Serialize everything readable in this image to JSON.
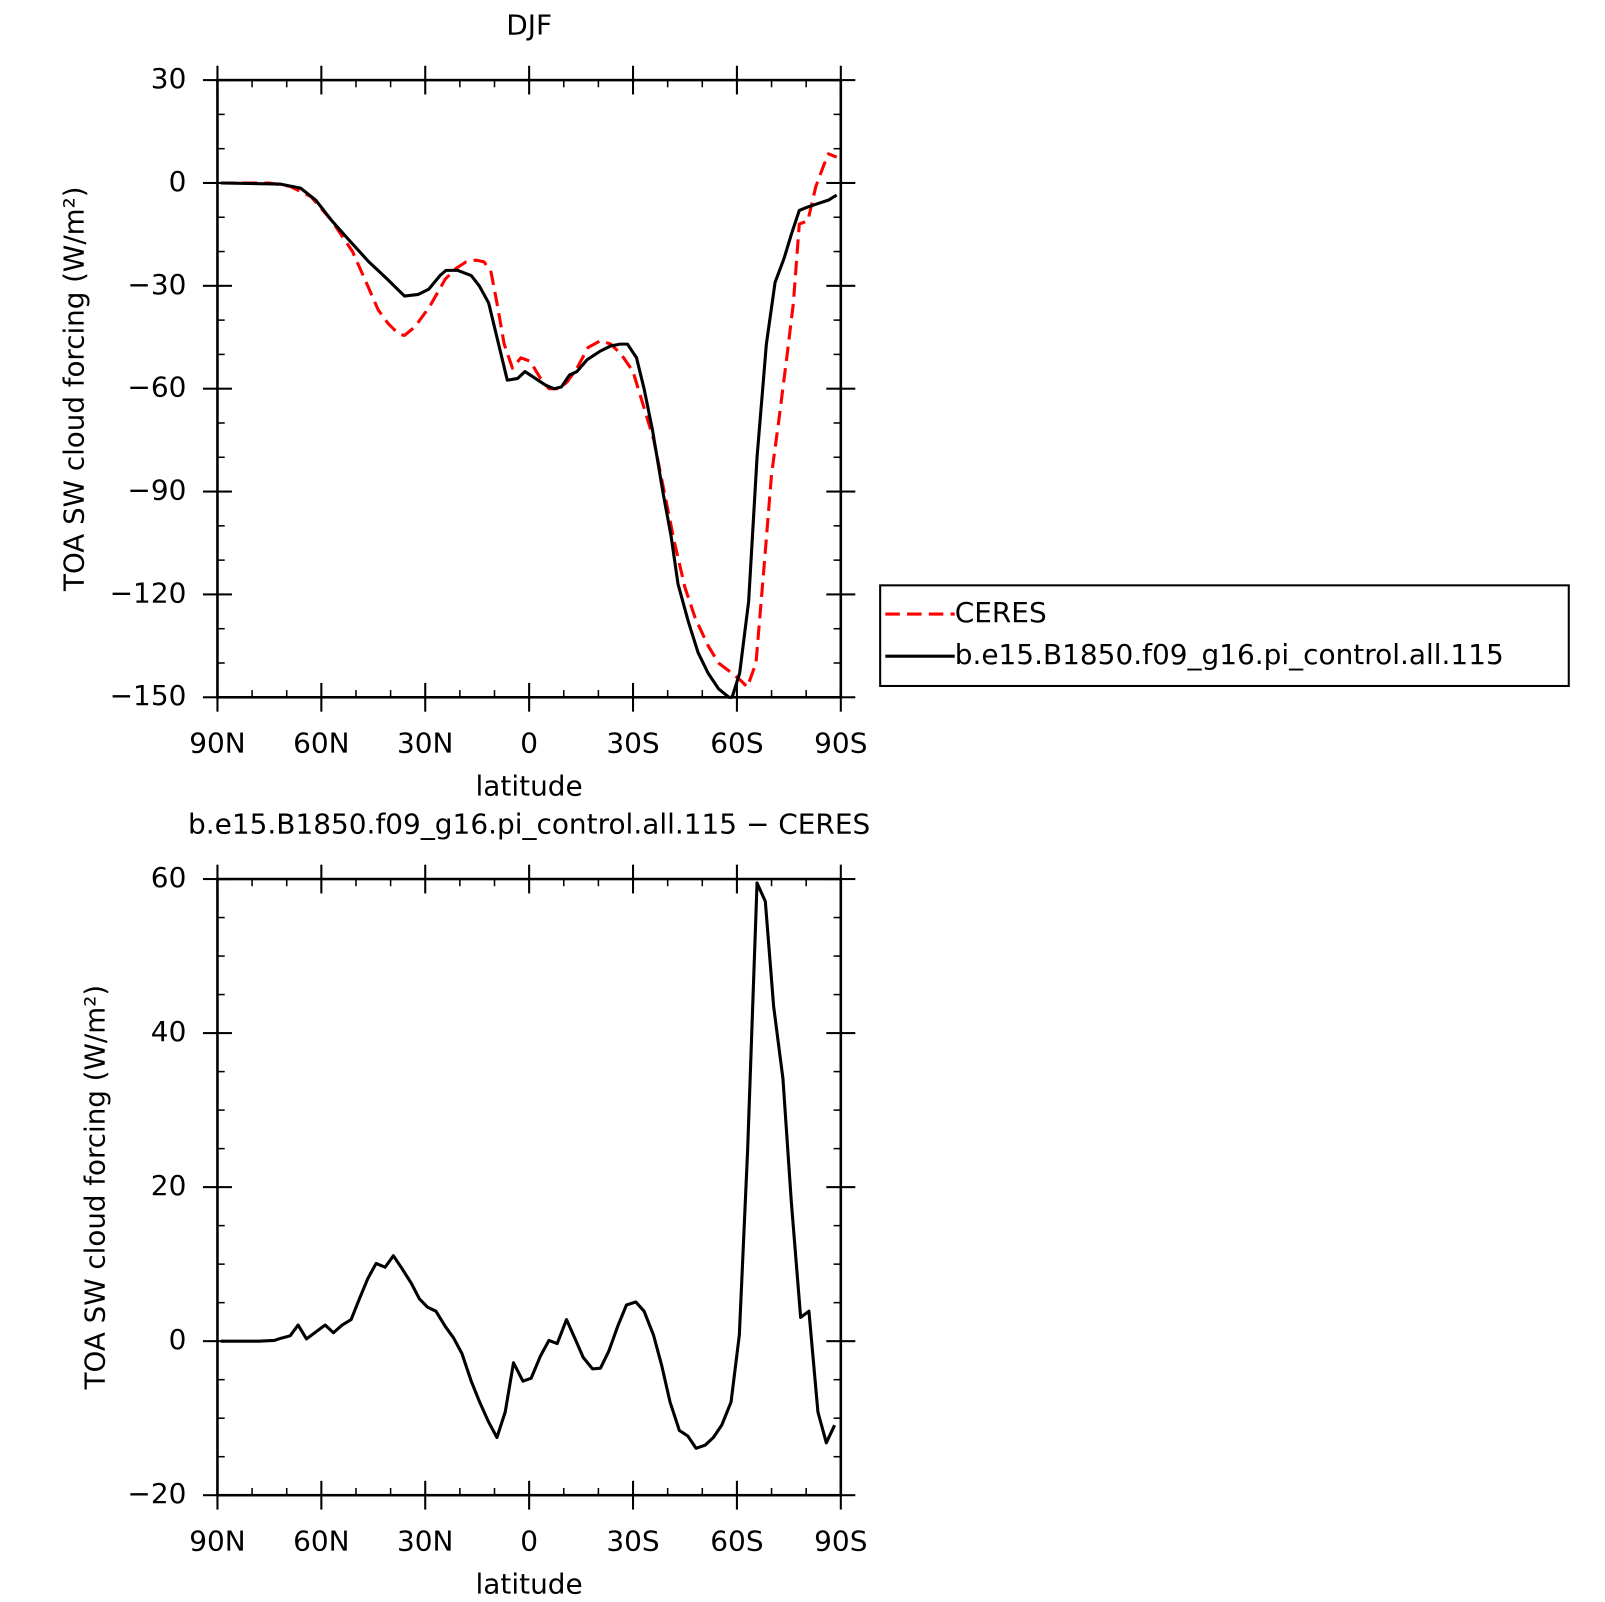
{
  "chart_data": [
    {
      "type": "line",
      "title": "DJF",
      "x_label": "latitude",
      "y_label": "TOA SW cloud forcing (W/m²)",
      "xlim": [
        90,
        -90
      ],
      "xticks": [
        {
          "value": 90,
          "label": "90N"
        },
        {
          "value": 60,
          "label": "60N"
        },
        {
          "value": 30,
          "label": "30N"
        },
        0,
        {
          "value": -30,
          "label": "30S"
        },
        {
          "value": -60,
          "label": "60S"
        },
        {
          "value": -90,
          "label": "90S"
        }
      ],
      "ylim": [
        -150,
        30
      ],
      "yticks": [
        30,
        0,
        {
          "value": -30,
          "label": "−30"
        },
        {
          "value": -60,
          "label": "−60"
        },
        {
          "value": -90,
          "label": "−90"
        },
        {
          "value": -120,
          "label": "−120"
        },
        {
          "value": -150,
          "label": "−150"
        }
      ],
      "legend": "right",
      "series": [
        {
          "name": "CERES",
          "color": "#ff0000",
          "dash": true,
          "x": [
            89,
            75,
            69,
            63,
            57,
            51,
            46.6,
            43.6,
            40.7,
            37.7,
            36,
            33,
            28.7,
            24.2,
            21.2,
            18.2,
            15.3,
            13,
            11,
            9.3,
            7.2,
            4.8,
            2.4,
            -0.3,
            -3.3,
            -5.7,
            -8.7,
            -11,
            -13.8,
            -17,
            -20.6,
            -23.6,
            -26.6,
            -30,
            -33,
            -36,
            -39,
            -42,
            -45,
            -48,
            -51.7,
            -54.7,
            -58.6,
            -61,
            -63,
            -65.5,
            -68,
            -70,
            -72,
            -74.5,
            -76.3,
            -78,
            -80.5,
            -82.8,
            -85,
            -86.4,
            -88.8
          ],
          "values": [
            0,
            0,
            -1,
            -4,
            -11,
            -20,
            -30,
            -37,
            -41,
            -44,
            -44.5,
            -42,
            -36,
            -28,
            -25,
            -23,
            -22.5,
            -23,
            -26,
            -35,
            -47,
            -54,
            -51,
            -52,
            -57,
            -60,
            -60,
            -58,
            -54,
            -48,
            -46,
            -47,
            -50,
            -55,
            -65,
            -75,
            -90,
            -105,
            -118,
            -127,
            -135,
            -140,
            -143,
            -145,
            -147,
            -140,
            -110,
            -85,
            -70,
            -50,
            -35,
            -12,
            -11,
            -1,
            5,
            8.5,
            7.5
          ]
        },
        {
          "name": "b.e15.B1850.f09_g16.pi_control.all.115",
          "color": "#000000",
          "dash": false,
          "x": [
            89,
            72,
            66,
            61.6,
            57,
            51.7,
            46.3,
            41,
            36,
            32,
            29,
            25.7,
            24,
            20.6,
            16.7,
            14.4,
            11.7,
            9.3,
            6.3,
            3.3,
            1.2,
            -1.8,
            -4.8,
            -7.2,
            -9.3,
            -11.7,
            -13.8,
            -16.8,
            -20.6,
            -23.6,
            -26.3,
            -28.4,
            -31,
            -33.2,
            -35.6,
            -38.6,
            -41,
            -43,
            -46,
            -48.8,
            -51.7,
            -54.7,
            -57.7,
            -58.6,
            -60.8,
            -63.4,
            -65.8,
            -68.5,
            -71,
            -73.6,
            -75.7,
            -78,
            -80.5,
            -83.4,
            -86.4,
            -88.8
          ],
          "values": [
            0,
            -0.3,
            -1.5,
            -5,
            -11,
            -17,
            -23,
            -28,
            -33,
            -32.5,
            -31,
            -27,
            -25.5,
            -25.5,
            -27,
            -30,
            -35,
            -45,
            -57.5,
            -57,
            -55,
            -57,
            -59,
            -60,
            -59.5,
            -56,
            -55,
            -51.5,
            -49,
            -47.5,
            -47,
            -47,
            -51,
            -60,
            -72,
            -90,
            -103,
            -117,
            -128,
            -137,
            -143,
            -147.5,
            -150,
            -150,
            -143,
            -122,
            -80,
            -47,
            -29,
            -22,
            -15,
            -8,
            -7,
            -6,
            -5,
            -3.5
          ]
        }
      ]
    },
    {
      "type": "line",
      "title": "b.e15.B1850.f09_g16.pi_control.all.115 − CERES",
      "x_label": "latitude",
      "y_label": "TOA SW cloud forcing (W/m²)",
      "xlim": [
        90,
        -90
      ],
      "xticks": [
        {
          "value": 90,
          "label": "90N"
        },
        {
          "value": 60,
          "label": "60N"
        },
        {
          "value": 30,
          "label": "30N"
        },
        0,
        {
          "value": -30,
          "label": "30S"
        },
        {
          "value": -60,
          "label": "60S"
        },
        {
          "value": -90,
          "label": "90S"
        }
      ],
      "ylim": [
        -20,
        60
      ],
      "yticks": [
        60,
        40,
        20,
        0,
        {
          "value": -20,
          "label": "−20"
        }
      ],
      "series": [
        {
          "color": "#000000",
          "dash": false,
          "x": [
            89,
            78,
            73.6,
            71.5,
            69,
            66.7,
            64.3,
            61.6,
            58.9,
            56.5,
            54,
            51.4,
            49,
            46.6,
            44.2,
            41.6,
            39.2,
            36.8,
            34,
            31.7,
            29.3,
            26.9,
            24.2,
            21.8,
            19.4,
            16.7,
            14.3,
            11.7,
            9.3,
            6.9,
            4.5,
            1.8,
            -0.6,
            -3.3,
            -5.7,
            -8.1,
            -10.8,
            -13.2,
            -15.6,
            -18.3,
            -20.6,
            -23,
            -25.7,
            -28.1,
            -30.8,
            -33.2,
            -35.9,
            -38.3,
            -40.7,
            -43.4,
            -45.8,
            -48.2,
            -50.8,
            -53.2,
            -55.6,
            -58.3,
            -60.7,
            -63.1,
            -65.8,
            -68.2,
            -70.6,
            -73.3,
            -75.7,
            -78.4,
            -80.8,
            -83.4,
            -85.8,
            -88.2
          ],
          "values": [
            0,
            0,
            0.1,
            0.4,
            0.7,
            2.1,
            0.3,
            1.2,
            2.1,
            1.1,
            2.1,
            2.8,
            5.5,
            8.1,
            10.1,
            9.6,
            11.1,
            9.5,
            7.5,
            5.5,
            4.4,
            3.9,
            1.9,
            0.4,
            -1.6,
            -5.2,
            -7.9,
            -10.5,
            -12.5,
            -9.2,
            -2.8,
            -5.2,
            -4.8,
            -1.9,
            0.1,
            -0.3,
            2.8,
            0.4,
            -2.1,
            -3.6,
            -3.5,
            -1.3,
            2.1,
            4.7,
            5.1,
            3.9,
            0.8,
            -3.2,
            -7.9,
            -11.6,
            -12.3,
            -13.9,
            -13.5,
            -12.5,
            -10.9,
            -7.9,
            0.8,
            24.8,
            59.5,
            57.1,
            43.5,
            34.1,
            18.1,
            3.1,
            3.9,
            -9.2,
            -13.2,
            -10.9
          ]
        }
      ]
    }
  ]
}
